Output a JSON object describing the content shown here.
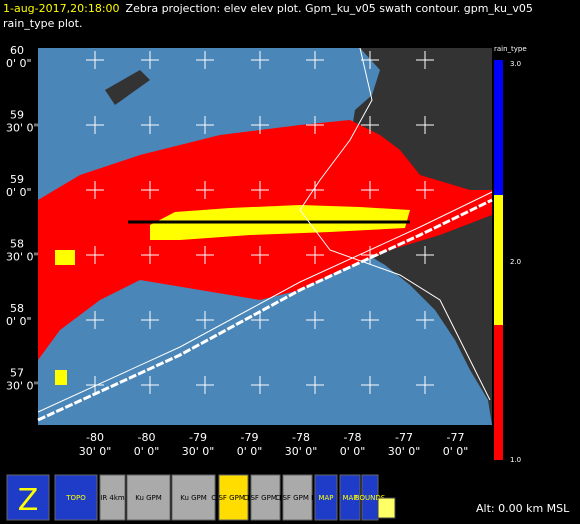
{
  "header": {
    "time": "1-aug-2017,20:18:00",
    "description": "Zebra projection: elev elev  plot.  Gpm_ku_v05 swath contour.  gpm_ku_v05",
    "line2": "rain_type  plot."
  },
  "map": {
    "lat_labels": [
      {
        "deg": "60",
        "min": "0' 0\""
      },
      {
        "deg": "59",
        "min": "30' 0\""
      },
      {
        "deg": "59",
        "min": "0' 0\""
      },
      {
        "deg": "58",
        "min": "30' 0\""
      },
      {
        "deg": "58",
        "min": "0' 0\""
      },
      {
        "deg": "57",
        "min": "30' 0\""
      }
    ],
    "lon_labels": [
      {
        "deg": "-80",
        "min": "30' 0\""
      },
      {
        "deg": "-80",
        "min": "0' 0\""
      },
      {
        "deg": "-79",
        "min": "30' 0\""
      },
      {
        "deg": "-79",
        "min": "0' 0\""
      },
      {
        "deg": "-78",
        "min": "30' 0\""
      },
      {
        "deg": "-78",
        "min": "0' 0\""
      },
      {
        "deg": "-77",
        "min": "30' 0\""
      },
      {
        "deg": "-77",
        "min": "0' 0\""
      }
    ]
  },
  "legend": {
    "title": "rain_type",
    "labels": [
      "3.0",
      "2.0",
      "1.0"
    ]
  },
  "toolbar": {
    "buttons": [
      "Z",
      "TOPO",
      "IR 4km",
      "Ku GPM",
      "Ku GPM",
      "C/SF GPM Ku",
      "C/SF GPM Ku",
      "C/SF GPM Ku",
      "MAP",
      "MAP",
      "BOUNDS"
    ]
  },
  "status": "Alt: 0.00 km MSL"
}
